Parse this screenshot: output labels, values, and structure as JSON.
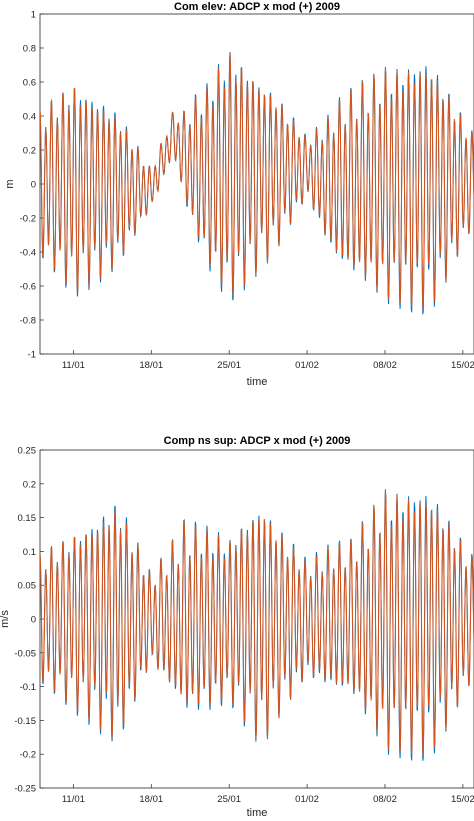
{
  "colors": {
    "adcp": "#0072BD",
    "model": "#D95319"
  },
  "chart_data": [
    {
      "type": "line",
      "title": "Com elev: ADCP x mod (+) 2009",
      "xlabel": "time",
      "ylabel": "m",
      "xlim": [
        "2009-01-08",
        "2009-02-16"
      ],
      "ylim": [
        -1,
        1
      ],
      "xticks": [
        "11/01",
        "18/01",
        "25/01",
        "01/02",
        "08/02",
        "15/02"
      ],
      "xtick_dates": [
        "2009-01-11",
        "2009-01-18",
        "2009-01-25",
        "2009-02-01",
        "2009-02-08",
        "2009-02-15"
      ],
      "yticks": [
        "-1",
        "-0.8",
        "-0.6",
        "-0.4",
        "-0.2",
        "0",
        "0.2",
        "0.4",
        "0.6",
        "0.8",
        "1"
      ],
      "signal": "semidiurnal tidal oscillation",
      "envelope": {
        "dates": [
          "2009-01-08",
          "2009-01-11",
          "2009-01-15",
          "2009-01-18",
          "2009-01-20",
          "2009-01-22",
          "2009-01-25",
          "2009-01-29",
          "2009-02-01",
          "2009-02-04",
          "2009-02-08",
          "2009-02-12",
          "2009-02-16"
        ],
        "amplitude": [
          0.45,
          0.72,
          0.45,
          0.12,
          0.15,
          0.45,
          0.75,
          0.55,
          0.18,
          0.5,
          0.78,
          0.75,
          0.3
        ]
      },
      "mean_level": {
        "dates": [
          "2009-01-08",
          "2009-01-18",
          "2009-01-20",
          "2009-01-21",
          "2009-01-23",
          "2009-02-01",
          "2009-02-03",
          "2009-02-16"
        ],
        "values": [
          0,
          -0.03,
          0.3,
          0.15,
          0.05,
          0.1,
          0,
          0.02
        ]
      }
    },
    {
      "type": "line",
      "title": "Comp ns sup: ADCP x mod (+) 2009",
      "xlabel": "time",
      "ylabel": "m/s",
      "xlim": [
        "2009-01-08",
        "2009-02-16"
      ],
      "ylim": [
        -0.25,
        0.25
      ],
      "xticks": [
        "11/01",
        "18/01",
        "25/01",
        "01/02",
        "08/02",
        "15/02"
      ],
      "xtick_dates": [
        "2009-01-11",
        "2009-01-18",
        "2009-01-25",
        "2009-02-01",
        "2009-02-08",
        "2009-02-15"
      ],
      "yticks": [
        "-0.25",
        "-0.2",
        "-0.15",
        "-0.1",
        "-0.05",
        "0",
        "0.05",
        "0.1",
        "0.15",
        "0.2",
        "0.25"
      ],
      "signal": "semidiurnal tidal current",
      "envelope": {
        "dates": [
          "2009-01-08",
          "2009-01-11",
          "2009-01-15",
          "2009-01-18",
          "2009-01-21",
          "2009-01-25",
          "2009-01-28",
          "2009-02-01",
          "2009-02-05",
          "2009-02-08",
          "2009-02-12",
          "2009-02-16"
        ],
        "amplitude": [
          0.1,
          0.15,
          0.18,
          0.07,
          0.16,
          0.12,
          0.2,
          0.09,
          0.12,
          0.22,
          0.2,
          0.1
        ]
      },
      "mean_level": {
        "dates": [
          "2009-01-08",
          "2009-02-16"
        ],
        "values": [
          0,
          0
        ]
      }
    }
  ]
}
